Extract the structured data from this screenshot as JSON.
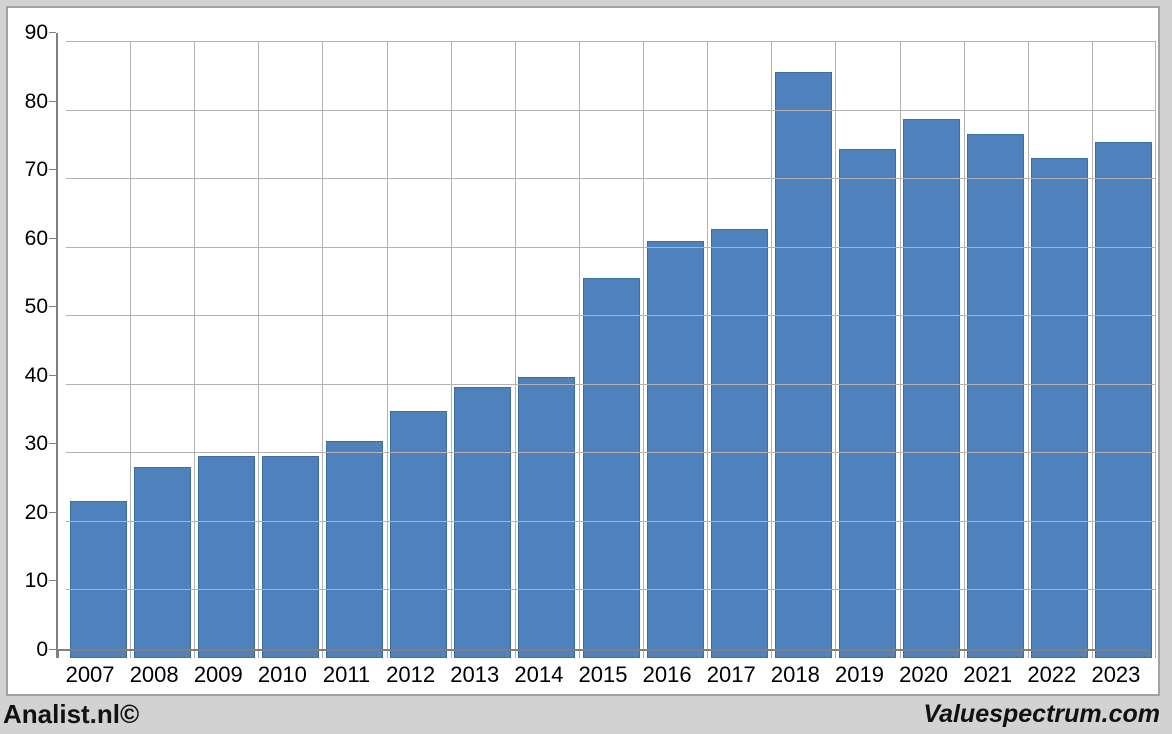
{
  "chart_data": {
    "type": "bar",
    "title": "",
    "xlabel": "",
    "ylabel": "",
    "categories": [
      "2007",
      "2008",
      "2009",
      "2010",
      "2011",
      "2012",
      "2013",
      "2014",
      "2015",
      "2016",
      "2017",
      "2018",
      "2019",
      "2020",
      "2021",
      "2022",
      "2023"
    ],
    "values": [
      22.9,
      27.9,
      29.4,
      29.4,
      31.6,
      36.0,
      39.6,
      41.0,
      55.4,
      60.8,
      62.6,
      85.5,
      74.2,
      78.6,
      76.4,
      73.0,
      75.3
    ],
    "ylim": [
      0,
      90
    ],
    "ytick_step": 10,
    "ytick_labels": [
      "0",
      "10",
      "20",
      "30",
      "40",
      "50",
      "60",
      "70",
      "80",
      "90"
    ],
    "grid": true,
    "legend": "none",
    "colors": {
      "bar_fill": "#4f81bd",
      "bar_border": "#3f6ca4",
      "gridline": "#b2b2b2",
      "axis": "#7f7f7f",
      "plot_background": "#ffffff",
      "outer_background": "#d2d2d2",
      "panel_border": "#a2a2a2",
      "text": "#000000"
    }
  },
  "branding": {
    "left": "Analist.nl©",
    "right": "Valuespectrum.com"
  }
}
